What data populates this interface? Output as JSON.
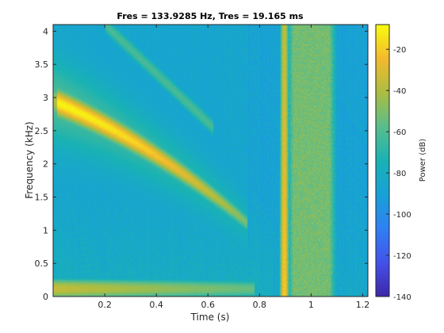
{
  "chart_data": {
    "type": "heatmap",
    "title": "Fres = 133.9285 Hz, Tres = 19.165 ms",
    "xlabel": "Time (s)",
    "ylabel": "Frequency (kHz)",
    "colorbar_label": "Power (dB)",
    "xlim": [
      0.0,
      1.22
    ],
    "ylim": [
      0.0,
      4.1
    ],
    "clim": [
      -140,
      -8
    ],
    "xticks": [
      0.2,
      0.4,
      0.6,
      0.8,
      1,
      1.2
    ],
    "xtick_labels": [
      "0.2",
      "0.4",
      "0.6",
      "0.8",
      "1",
      "1.2"
    ],
    "yticks": [
      0,
      0.5,
      1,
      1.5,
      2,
      2.5,
      3,
      3.5,
      4
    ],
    "ytick_labels": [
      "0",
      "0.5",
      "1",
      "1.5",
      "2",
      "2.5",
      "3",
      "3.5",
      "4"
    ],
    "cticks": [
      -140,
      -120,
      -100,
      -80,
      -60,
      -40,
      -20
    ],
    "ctick_labels": [
      "-140",
      "-120",
      "-100",
      "-80",
      "-60",
      "-40",
      "-20"
    ],
    "colormap": "parula",
    "background_level_db": -88,
    "features": [
      {
        "kind": "chirp",
        "t_start": 0.0,
        "t_end": 0.74,
        "f_start": 2.95,
        "f_end": 1.15,
        "peak_db": -10,
        "edge_db": -55
      },
      {
        "kind": "chirp_harmonic",
        "t_start": 0.3,
        "t_end": 0.6,
        "f_start": 4.1,
        "f_end": 2.55,
        "peak_db": -62
      },
      {
        "kind": "low_band",
        "t_start": 0.0,
        "t_end": 0.78,
        "f_center": 0.12,
        "peak_db": -35
      },
      {
        "kind": "impulse",
        "t_center": 0.895,
        "peak_db": -20
      },
      {
        "kind": "noise_burst",
        "t_start": 0.9,
        "t_end": 1.1,
        "level_db": -52
      }
    ],
    "grid": false,
    "legend": "none"
  }
}
